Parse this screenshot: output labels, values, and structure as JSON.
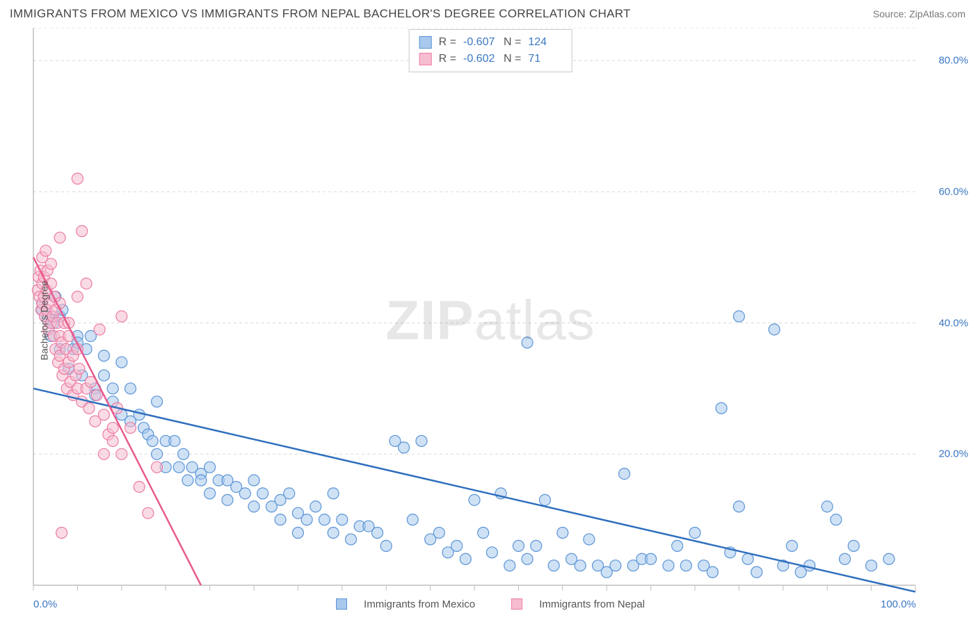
{
  "header": {
    "title": "IMMIGRANTS FROM MEXICO VS IMMIGRANTS FROM NEPAL BACHELOR'S DEGREE CORRELATION CHART",
    "source_prefix": "Source: ",
    "source_name": "ZipAtlas.com"
  },
  "watermark": {
    "part1": "ZIP",
    "part2": "atlas"
  },
  "chart": {
    "type": "scatter",
    "ylabel": "Bachelor's Degree",
    "xlim": [
      0,
      100
    ],
    "ylim": [
      0,
      85
    ],
    "xtick_labels": [
      {
        "value": 0,
        "label": "0.0%"
      },
      {
        "value": 100,
        "label": "100.0%"
      }
    ],
    "ytick_labels": [
      {
        "value": 20,
        "label": "20.0%"
      },
      {
        "value": 40,
        "label": "40.0%"
      },
      {
        "value": 60,
        "label": "60.0%"
      },
      {
        "value": 80,
        "label": "80.0%"
      }
    ],
    "grid_y": [
      0,
      20,
      40,
      60,
      80,
      85
    ],
    "xtick_marks": [
      0,
      5,
      10,
      15,
      20,
      25,
      30,
      35,
      40,
      45,
      50,
      55,
      60,
      65,
      70,
      75,
      80,
      85,
      90,
      95,
      100
    ],
    "background_color": "#ffffff",
    "grid_color": "#d8d8d8",
    "axis_color": "#bfbfbf",
    "marker_radius": 8,
    "marker_opacity": 0.55,
    "series": [
      {
        "name": "Immigrants from Mexico",
        "color_fill": "#a8c8ec",
        "color_stroke": "#5a94d6",
        "trend_color": "#2f6fbf",
        "trend": {
          "x1": 0,
          "y1": 30,
          "x2": 100,
          "y2": -1
        },
        "R": "-0.607",
        "N": "124",
        "points": [
          [
            1,
            42
          ],
          [
            1,
            43
          ],
          [
            1.5,
            41
          ],
          [
            2,
            40
          ],
          [
            2,
            41
          ],
          [
            2,
            38
          ],
          [
            2.3,
            40
          ],
          [
            2.5,
            44
          ],
          [
            3,
            36
          ],
          [
            3,
            41
          ],
          [
            3.3,
            42
          ],
          [
            4,
            33
          ],
          [
            4.5,
            36
          ],
          [
            5,
            38
          ],
          [
            5,
            37
          ],
          [
            5.5,
            32
          ],
          [
            6,
            36
          ],
          [
            6.5,
            38
          ],
          [
            7,
            30
          ],
          [
            7,
            29
          ],
          [
            8,
            32
          ],
          [
            8,
            35
          ],
          [
            9,
            28
          ],
          [
            9,
            30
          ],
          [
            10,
            34
          ],
          [
            10,
            26
          ],
          [
            11,
            30
          ],
          [
            11,
            25
          ],
          [
            12,
            26
          ],
          [
            12.5,
            24
          ],
          [
            13,
            23
          ],
          [
            13.5,
            22
          ],
          [
            14,
            28
          ],
          [
            14,
            20
          ],
          [
            15,
            22
          ],
          [
            15,
            18
          ],
          [
            16,
            22
          ],
          [
            16.5,
            18
          ],
          [
            17,
            20
          ],
          [
            17.5,
            16
          ],
          [
            18,
            18
          ],
          [
            19,
            17
          ],
          [
            19,
            16
          ],
          [
            20,
            18
          ],
          [
            20,
            14
          ],
          [
            21,
            16
          ],
          [
            22,
            16
          ],
          [
            22,
            13
          ],
          [
            23,
            15
          ],
          [
            24,
            14
          ],
          [
            25,
            12
          ],
          [
            25,
            16
          ],
          [
            26,
            14
          ],
          [
            27,
            12
          ],
          [
            28,
            13
          ],
          [
            28,
            10
          ],
          [
            29,
            14
          ],
          [
            30,
            11
          ],
          [
            30,
            8
          ],
          [
            31,
            10
          ],
          [
            32,
            12
          ],
          [
            33,
            10
          ],
          [
            34,
            8
          ],
          [
            34,
            14
          ],
          [
            35,
            10
          ],
          [
            36,
            7
          ],
          [
            37,
            9
          ],
          [
            38,
            9
          ],
          [
            39,
            8
          ],
          [
            40,
            6
          ],
          [
            41,
            22
          ],
          [
            42,
            21
          ],
          [
            43,
            10
          ],
          [
            44,
            22
          ],
          [
            45,
            7
          ],
          [
            46,
            8
          ],
          [
            47,
            5
          ],
          [
            48,
            6
          ],
          [
            49,
            4
          ],
          [
            50,
            13
          ],
          [
            51,
            8
          ],
          [
            52,
            5
          ],
          [
            53,
            14
          ],
          [
            54,
            3
          ],
          [
            55,
            6
          ],
          [
            56,
            4
          ],
          [
            57,
            6
          ],
          [
            58,
            13
          ],
          [
            59,
            3
          ],
          [
            60,
            8
          ],
          [
            61,
            4
          ],
          [
            62,
            3
          ],
          [
            63,
            7
          ],
          [
            64,
            3
          ],
          [
            65,
            2
          ],
          [
            66,
            3
          ],
          [
            67,
            17
          ],
          [
            68,
            3
          ],
          [
            69,
            4
          ],
          [
            70,
            4
          ],
          [
            56,
            37
          ],
          [
            72,
            3
          ],
          [
            73,
            6
          ],
          [
            74,
            3
          ],
          [
            75,
            8
          ],
          [
            76,
            3
          ],
          [
            77,
            2
          ],
          [
            78,
            27
          ],
          [
            79,
            5
          ],
          [
            80,
            12
          ],
          [
            81,
            4
          ],
          [
            82,
            2
          ],
          [
            80,
            41
          ],
          [
            84,
            39
          ],
          [
            85,
            3
          ],
          [
            86,
            6
          ],
          [
            87,
            2
          ],
          [
            88,
            3
          ],
          [
            90,
            12
          ],
          [
            91,
            10
          ],
          [
            92,
            4
          ],
          [
            93,
            6
          ],
          [
            95,
            3
          ],
          [
            97,
            4
          ]
        ]
      },
      {
        "name": "Immigrants from Nepal",
        "color_fill": "#f6bdd0",
        "color_stroke": "#ec7ba3",
        "trend_color": "#e75a8e",
        "trend": {
          "x1": 0,
          "y1": 50,
          "x2": 19,
          "y2": 0
        },
        "R": "-0.602",
        "N": "71",
        "points": [
          [
            0.5,
            45
          ],
          [
            0.6,
            47
          ],
          [
            0.7,
            44
          ],
          [
            0.8,
            48
          ],
          [
            0.9,
            42
          ],
          [
            1,
            46
          ],
          [
            1,
            43
          ],
          [
            1,
            50
          ],
          [
            1.2,
            44
          ],
          [
            1.2,
            47
          ],
          [
            1.3,
            41
          ],
          [
            1.4,
            51
          ],
          [
            1.5,
            45
          ],
          [
            1.5,
            42
          ],
          [
            1.6,
            48
          ],
          [
            1.7,
            39
          ],
          [
            1.8,
            43
          ],
          [
            2,
            49
          ],
          [
            2,
            40
          ],
          [
            2,
            46
          ],
          [
            2.2,
            41
          ],
          [
            2.3,
            38
          ],
          [
            2.4,
            44
          ],
          [
            2.5,
            36
          ],
          [
            2.5,
            42
          ],
          [
            2.7,
            40
          ],
          [
            2.8,
            34
          ],
          [
            3,
            38
          ],
          [
            3,
            35
          ],
          [
            3,
            43
          ],
          [
            3.2,
            37
          ],
          [
            3.3,
            32
          ],
          [
            3.5,
            40
          ],
          [
            3.5,
            33
          ],
          [
            3.7,
            36
          ],
          [
            3.8,
            30
          ],
          [
            4,
            34
          ],
          [
            4,
            38
          ],
          [
            4.2,
            31
          ],
          [
            4.5,
            35
          ],
          [
            4.5,
            29
          ],
          [
            4.8,
            32
          ],
          [
            5,
            30
          ],
          [
            5,
            36
          ],
          [
            5.2,
            33
          ],
          [
            5.5,
            28
          ],
          [
            5,
            44
          ],
          [
            6,
            46
          ],
          [
            4,
            40
          ],
          [
            6,
            30
          ],
          [
            6.3,
            27
          ],
          [
            6.5,
            31
          ],
          [
            5.5,
            54
          ],
          [
            7,
            25
          ],
          [
            7.2,
            29
          ],
          [
            7.5,
            39
          ],
          [
            8,
            20
          ],
          [
            8,
            26
          ],
          [
            8.5,
            23
          ],
          [
            3,
            53
          ],
          [
            9,
            24
          ],
          [
            9,
            22
          ],
          [
            9.5,
            27
          ],
          [
            10,
            20
          ],
          [
            10,
            41
          ],
          [
            11,
            24
          ],
          [
            5,
            62
          ],
          [
            12,
            15
          ],
          [
            3.2,
            8
          ],
          [
            13,
            11
          ],
          [
            14,
            18
          ]
        ]
      }
    ]
  },
  "stats_box": {
    "r_label": "R =",
    "n_label": "N ="
  },
  "legend": {
    "items": [
      {
        "label": "Immigrants from Mexico",
        "fill": "#a8c8ec",
        "stroke": "#5a94d6"
      },
      {
        "label": "Immigrants from Nepal",
        "fill": "#f6bdd0",
        "stroke": "#ec7ba3"
      }
    ]
  }
}
